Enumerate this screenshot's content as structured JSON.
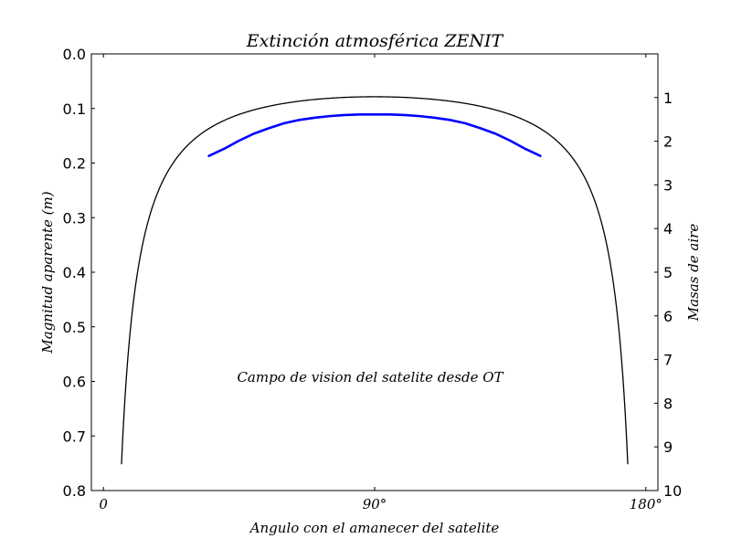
{
  "chart_data": {
    "type": "line",
    "title": "Extinción atmosférica ZENIT",
    "xlabel": "Angulo con el amanecer del satelite",
    "ylabel": "Magnitud aparente (m)",
    "y2label": "Masas de aire",
    "annotation": "Campo de vision del satelite desde OT",
    "xlim": [
      -4,
      184
    ],
    "ylim": [
      0.8,
      0.0
    ],
    "y_inverted": true,
    "y2lim": [
      10,
      0
    ],
    "x_ticks": [
      {
        "value": 0,
        "label": "0"
      },
      {
        "value": 90,
        "label": "90°"
      },
      {
        "value": 180,
        "label": "180°"
      }
    ],
    "y_ticks": [
      {
        "value": 0.0,
        "label": "0.0"
      },
      {
        "value": 0.1,
        "label": "0.1"
      },
      {
        "value": 0.2,
        "label": "0.2"
      },
      {
        "value": 0.3,
        "label": "0.3"
      },
      {
        "value": 0.4,
        "label": "0.4"
      },
      {
        "value": 0.5,
        "label": "0.5"
      },
      {
        "value": 0.6,
        "label": "0.6"
      },
      {
        "value": 0.7,
        "label": "0.7"
      },
      {
        "value": 0.8,
        "label": "0.8"
      }
    ],
    "y2_ticks": [
      {
        "value": 1,
        "label": "1"
      },
      {
        "value": 2,
        "label": "2"
      },
      {
        "value": 3,
        "label": "3"
      },
      {
        "value": 4,
        "label": "4"
      },
      {
        "value": 5,
        "label": "5"
      },
      {
        "value": 6,
        "label": "6"
      },
      {
        "value": 7,
        "label": "7"
      },
      {
        "value": 8,
        "label": "8"
      },
      {
        "value": 9,
        "label": "9"
      },
      {
        "value": 10,
        "label": "10"
      }
    ],
    "grid": false,
    "series": [
      {
        "color": "#000000",
        "model": "magnitude = k_zenith / sin(angle)",
        "k": 0.0785,
        "x_range": [
          6,
          174
        ],
        "x": [
          6,
          7,
          8,
          10,
          12,
          15,
          20,
          25,
          30,
          40,
          50,
          60,
          70,
          80,
          90,
          100,
          110,
          120,
          130,
          140,
          150,
          155,
          160,
          165,
          168,
          170,
          172,
          173,
          174
        ],
        "y": [
          0.751,
          0.644,
          0.564,
          0.452,
          0.378,
          0.303,
          0.23,
          0.186,
          0.157,
          0.122,
          0.102,
          0.091,
          0.084,
          0.08,
          0.0785,
          0.08,
          0.084,
          0.091,
          0.102,
          0.122,
          0.157,
          0.186,
          0.23,
          0.303,
          0.378,
          0.452,
          0.564,
          0.644,
          0.751
        ]
      },
      {
        "color": "#0000ff",
        "x": [
          35,
          40,
          45,
          50,
          55,
          60,
          65,
          70,
          75,
          80,
          85,
          90,
          95,
          100,
          105,
          110,
          115,
          120,
          125,
          130,
          135,
          140,
          145
        ],
        "y": [
          0.187,
          0.174,
          0.159,
          0.146,
          0.136,
          0.127,
          0.121,
          0.117,
          0.114,
          0.112,
          0.111,
          0.111,
          0.111,
          0.112,
          0.114,
          0.117,
          0.121,
          0.127,
          0.136,
          0.146,
          0.159,
          0.174,
          0.187
        ]
      }
    ]
  }
}
